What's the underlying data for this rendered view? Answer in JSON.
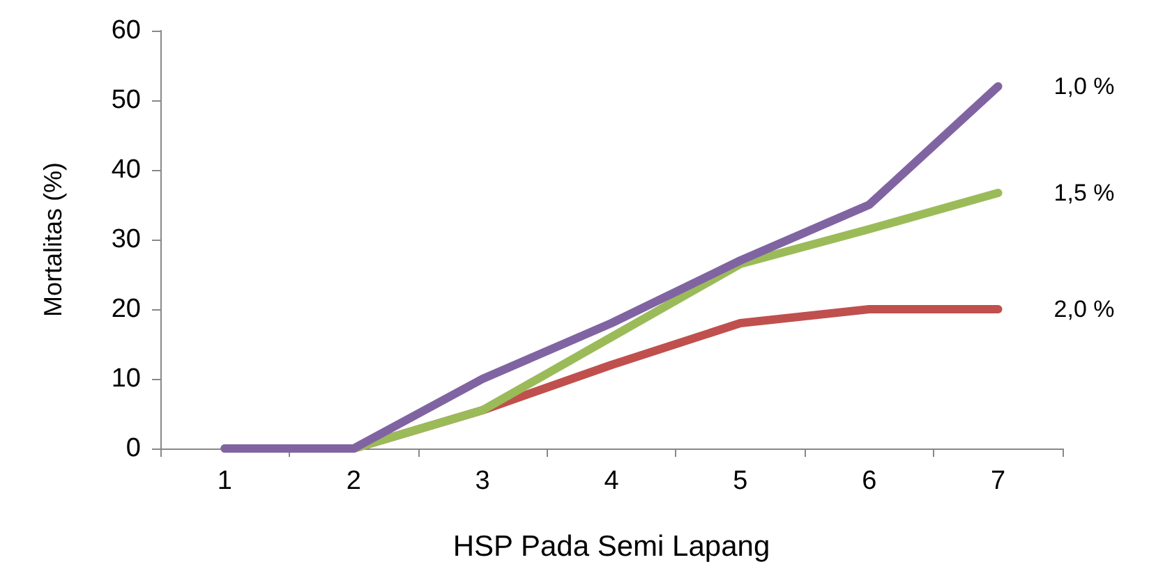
{
  "chart_data": {
    "type": "line",
    "xlabel": "HSP Pada Semi Lapang",
    "ylabel": "Mortalitas (%)",
    "categories": [
      "1",
      "2",
      "3",
      "4",
      "5",
      "6",
      "7"
    ],
    "series": [
      {
        "name": "2,0 %",
        "color": "#c0504d",
        "values": [
          0,
          0,
          5.5,
          12,
          18,
          20,
          20
        ]
      },
      {
        "name": "1,5 %",
        "color": "#9bbb59",
        "values": [
          0,
          0,
          5.5,
          16,
          26.5,
          31.5,
          36.7
        ]
      },
      {
        "name": "1,0 %",
        "color": "#8064a2",
        "values": [
          0,
          0,
          10,
          18,
          27,
          35,
          52
        ]
      }
    ],
    "ylim": [
      0,
      60
    ],
    "yticks": [
      0,
      10,
      20,
      30,
      40,
      50,
      60
    ],
    "grid": false,
    "legend": false,
    "marker": "none",
    "line_style": "solid"
  }
}
